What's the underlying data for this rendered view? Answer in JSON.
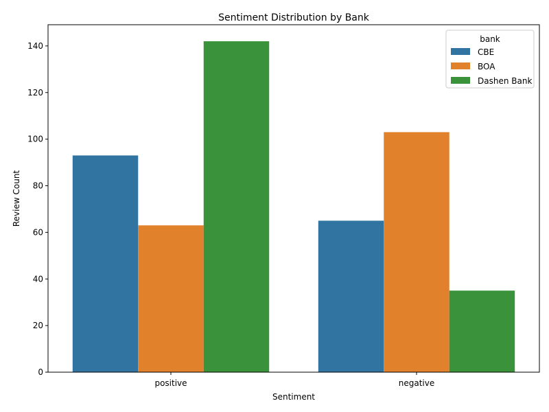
{
  "chart_data": {
    "type": "bar",
    "title": "Sentiment Distribution by Bank",
    "xlabel": "Sentiment",
    "ylabel": "Review Count",
    "categories": [
      "positive",
      "negative"
    ],
    "series": [
      {
        "name": "CBE",
        "values": [
          93,
          65
        ],
        "color": "#3274a1"
      },
      {
        "name": "BOA",
        "values": [
          63,
          103
        ],
        "color": "#e1812c"
      },
      {
        "name": "Dashen Bank",
        "values": [
          142,
          35
        ],
        "color": "#3a923a"
      }
    ],
    "ylim": [
      0,
      149.1
    ],
    "yticks": [
      0,
      20,
      40,
      60,
      80,
      100,
      120,
      140
    ],
    "grid": false,
    "legend": {
      "title": "bank",
      "placement": "top-right"
    }
  }
}
